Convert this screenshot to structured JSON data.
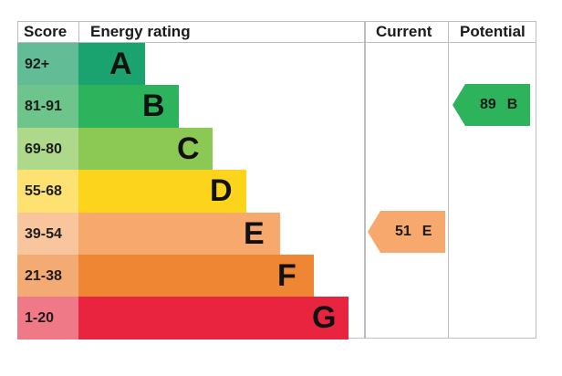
{
  "headers": {
    "score": "Score",
    "energy_rating": "Energy rating",
    "current": "Current",
    "potential": "Potential"
  },
  "bands": [
    {
      "score": "92+",
      "letter": "A",
      "color": "#1aa36f",
      "score_bg": "#62bd97"
    },
    {
      "score": "81-91",
      "letter": "B",
      "color": "#2eb35d",
      "score_bg": "#6dc58b"
    },
    {
      "score": "69-80",
      "letter": "C",
      "color": "#8cc854",
      "score_bg": "#afd98a"
    },
    {
      "score": "55-68",
      "letter": "D",
      "color": "#fdd41c",
      "score_bg": "#fde171"
    },
    {
      "score": "39-54",
      "letter": "E",
      "color": "#f6a86d",
      "score_bg": "#f8c59d"
    },
    {
      "score": "21-38",
      "letter": "F",
      "color": "#ef8633",
      "score_bg": "#f3aa73"
    },
    {
      "score": "1-20",
      "letter": "G",
      "color": "#e9243f",
      "score_bg": "#f07987"
    }
  ],
  "current": {
    "value": "51",
    "letter": "E",
    "color": "#f6a86d"
  },
  "potential": {
    "value": "89",
    "letter": "B",
    "color": "#2eb35d"
  }
}
